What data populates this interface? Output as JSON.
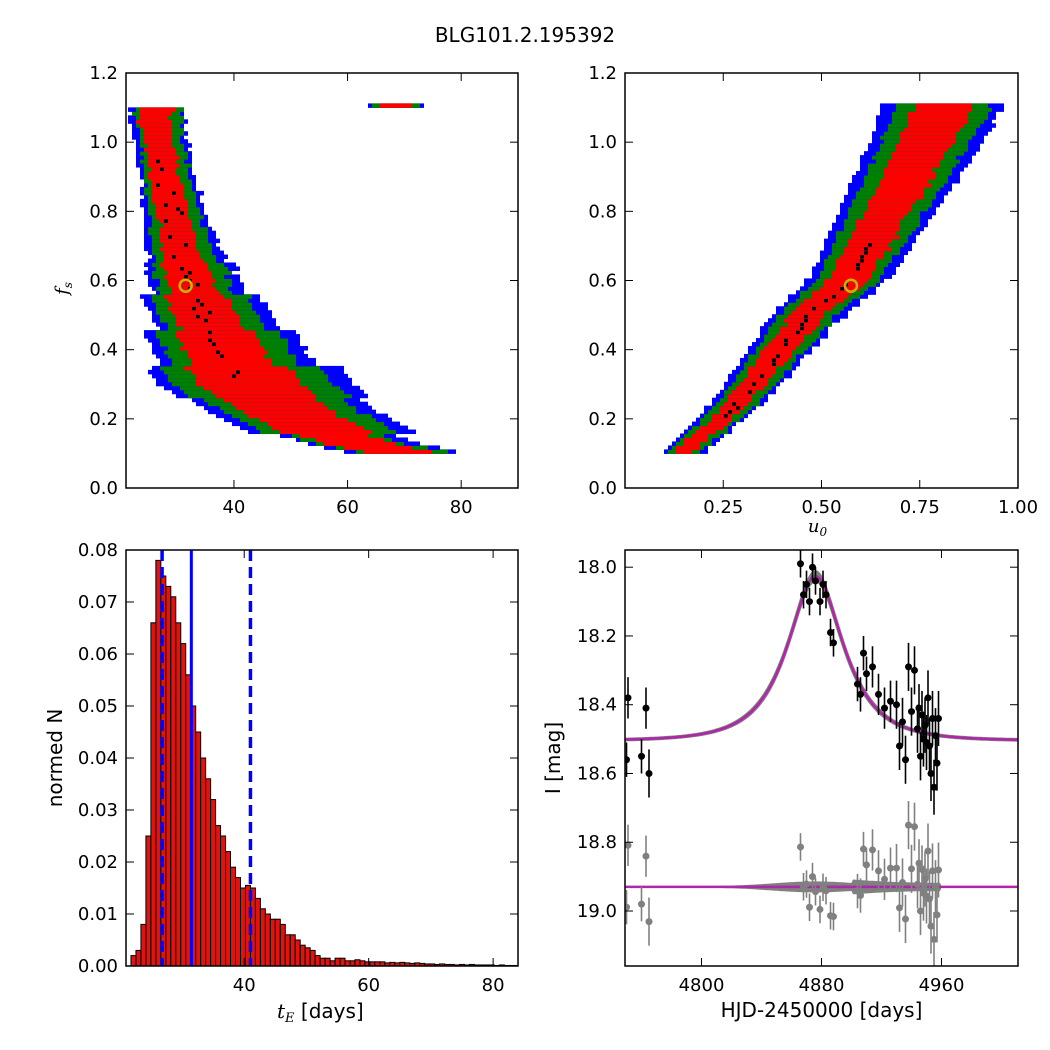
{
  "suptitle": "BLG101.2.195392",
  "colors": {
    "sigma1": "#ff0000",
    "sigma2": "#008000",
    "sigma3": "#0000ff",
    "best_chain": "#000000",
    "marker_edge": "#c8b400",
    "hist_fill": "#e0140f",
    "vline": "#0000ff",
    "model_line": "#b026a8",
    "model_band": "#808080",
    "resid": "#808080"
  },
  "chart_data": [
    {
      "id": "fs_vs_tE",
      "type": "heatmap",
      "xlabel": "",
      "ylabel": "f_s",
      "xlim": [
        21,
        90
      ],
      "ylim": [
        0.0,
        1.2
      ],
      "xticks": [
        40,
        60,
        80
      ],
      "yticks": [
        0.0,
        0.2,
        0.4,
        0.6,
        0.8,
        1.0,
        1.2
      ],
      "ytick_labels": [
        "0.0",
        "0.2",
        "0.4",
        "0.6",
        "0.8",
        "1.0",
        "1.2"
      ],
      "ridge": {
        "x_at_fs": [
          [
            1.1,
            25.5
          ],
          [
            0.9,
            27.5
          ],
          [
            0.7,
            30.0
          ],
          [
            0.58,
            32.0
          ],
          [
            0.5,
            34.0
          ],
          [
            0.4,
            37.0
          ],
          [
            0.3,
            41.0
          ],
          [
            0.25,
            45.0
          ],
          [
            0.2,
            50.0
          ],
          [
            0.15,
            56.0
          ],
          [
            0.12,
            62.0
          ],
          [
            0.1,
            68.0
          ]
        ]
      },
      "contour_half_widths": {
        "sigma1": [
          3.0,
          2.6,
          2.6,
          2.8,
          3.2,
          4.0,
          5.5,
          7.0,
          9.0,
          8.0,
          6.0
        ],
        "sigma2": [
          4.2,
          3.8,
          4.0,
          4.4,
          5.2,
          6.5,
          8.5,
          11.0,
          14.0,
          12.0,
          8.0
        ],
        "sigma3": [
          5.0,
          4.6,
          4.9,
          5.4,
          6.4,
          8.0,
          10.5,
          13.5,
          17.0,
          15.0,
          10.0
        ]
      },
      "best_fit": {
        "x": 31.5,
        "y": 0.585
      }
    },
    {
      "id": "fs_vs_u0",
      "type": "heatmap",
      "xlabel": "u_0",
      "ylabel": "",
      "xlim": [
        0.0,
        1.0
      ],
      "ylim": [
        0.0,
        1.2
      ],
      "xticks": [
        0.25,
        0.5,
        0.75,
        1.0
      ],
      "xtick_labels": [
        "0.25",
        "0.50",
        "0.75",
        "1.00"
      ],
      "yticks": [
        0.0,
        0.2,
        0.4,
        0.6,
        0.8,
        1.0,
        1.2
      ],
      "ytick_labels": [
        "0.0",
        "0.2",
        "0.4",
        "0.6",
        "0.8",
        "1.0",
        "1.2"
      ],
      "ridge": {
        "x_at_fs": [
          [
            0.1,
            0.15
          ],
          [
            0.2,
            0.25
          ],
          [
            0.3,
            0.33
          ],
          [
            0.4,
            0.4
          ],
          [
            0.5,
            0.47
          ],
          [
            0.6,
            0.57
          ],
          [
            0.7,
            0.62
          ],
          [
            0.8,
            0.67
          ],
          [
            0.9,
            0.72
          ],
          [
            1.0,
            0.77
          ],
          [
            1.1,
            0.81
          ]
        ]
      },
      "best_fit": {
        "x": 0.575,
        "y": 0.585
      }
    },
    {
      "id": "tE_histogram",
      "type": "bar",
      "xlabel": "t_E [days]",
      "xlabel_unit": " [days]",
      "ylabel": "normed N",
      "xlim": [
        21,
        84
      ],
      "ylim": [
        0.0,
        0.08
      ],
      "xticks": [
        40,
        60,
        80
      ],
      "yticks": [
        0.0,
        0.01,
        0.02,
        0.03,
        0.04,
        0.05,
        0.06,
        0.07,
        0.08
      ],
      "ytick_labels": [
        "0.00",
        "0.01",
        "0.02",
        "0.03",
        "0.04",
        "0.05",
        "0.06",
        "0.07",
        "0.08"
      ],
      "bin_start": 21.8,
      "bin_width": 0.8,
      "values": [
        0.002,
        0.003,
        0.008,
        0.025,
        0.066,
        0.078,
        0.075,
        0.073,
        0.071,
        0.066,
        0.062,
        0.056,
        0.05,
        0.045,
        0.04,
        0.036,
        0.032,
        0.027,
        0.025,
        0.022,
        0.019,
        0.017,
        0.015,
        0.0155,
        0.015,
        0.013,
        0.011,
        0.01,
        0.009,
        0.009,
        0.008,
        0.006,
        0.006,
        0.005,
        0.004,
        0.0035,
        0.003,
        0.002,
        0.0015,
        0.0015,
        0.001,
        0.0015,
        0.0015,
        0.001,
        0.001,
        0.0012,
        0.001,
        0.0008,
        0.0008,
        0.0008,
        0.0008,
        0.0006,
        0.0007,
        0.0006,
        0.0007,
        0.0006,
        0.0005,
        0.0006,
        0.0005,
        0.0004,
        0.0004,
        0.0003,
        0.0004,
        0.0003,
        0.0003,
        0.0002,
        0.0003,
        0.0002,
        0.0003,
        0.0002,
        0.0002,
        0.0002,
        0.0002,
        0.0001,
        0.0002,
        0.0001,
        0.0001,
        0.0001
      ],
      "median": 31.5,
      "lower": 26.8,
      "upper": 41.0
    },
    {
      "id": "lightcurve",
      "type": "scatter",
      "xlabel": "HJD-2450000 [days]",
      "ylabel": "I [mag]",
      "xlim": [
        4749,
        5011
      ],
      "ylim": [
        19.16,
        17.95
      ],
      "xticks": [
        4800,
        4880,
        4960
      ],
      "xtick_labels": [
        "4800",
        "4880",
        "4960"
      ],
      "yticks": [
        18.0,
        18.2,
        18.4,
        18.6,
        18.8,
        19.0
      ],
      "ytick_labels": [
        "18.0",
        "18.2",
        "18.4",
        "18.6",
        "18.8",
        "19.0"
      ],
      "model": {
        "t0": 4876,
        "tE": 31.5,
        "u0": 0.575,
        "baseline_mag": 18.505,
        "blend_fraction": 0.585
      },
      "residual_offset_mag": 18.93,
      "data": {
        "t": [
          4750,
          4751,
          4760,
          4763,
          4765,
          4866,
          4868,
          4870,
          4872,
          4874,
          4876,
          4879,
          4881,
          4883,
          4886,
          4888,
          4904,
          4906,
          4908,
          4910,
          4914,
          4918,
          4922,
          4926,
          4930,
          4932,
          4934,
          4936,
          4938,
          4940,
          4942,
          4944,
          4945,
          4946,
          4947,
          4948,
          4949,
          4950,
          4951,
          4952,
          4953,
          4954,
          4955,
          4956,
          4957,
          4958
        ],
        "mag": [
          18.56,
          18.38,
          18.55,
          18.41,
          18.6,
          17.99,
          18.08,
          18.05,
          18.1,
          18.0,
          18.04,
          18.1,
          18.05,
          18.08,
          18.19,
          18.22,
          18.34,
          18.37,
          18.25,
          18.31,
          18.29,
          18.37,
          18.41,
          18.39,
          18.4,
          18.52,
          18.45,
          18.56,
          18.29,
          18.42,
          18.3,
          18.47,
          18.41,
          18.55,
          18.43,
          18.5,
          18.46,
          18.51,
          18.38,
          18.52,
          18.6,
          18.44,
          18.64,
          18.49,
          18.57,
          18.44
        ],
        "err": [
          0.05,
          0.06,
          0.05,
          0.06,
          0.07,
          0.04,
          0.04,
          0.04,
          0.04,
          0.04,
          0.04,
          0.04,
          0.04,
          0.04,
          0.04,
          0.04,
          0.05,
          0.05,
          0.05,
          0.05,
          0.06,
          0.06,
          0.06,
          0.06,
          0.07,
          0.07,
          0.07,
          0.07,
          0.07,
          0.07,
          0.07,
          0.07,
          0.07,
          0.07,
          0.07,
          0.08,
          0.08,
          0.08,
          0.08,
          0.08,
          0.08,
          0.08,
          0.08,
          0.08,
          0.08,
          0.08
        ]
      }
    }
  ]
}
